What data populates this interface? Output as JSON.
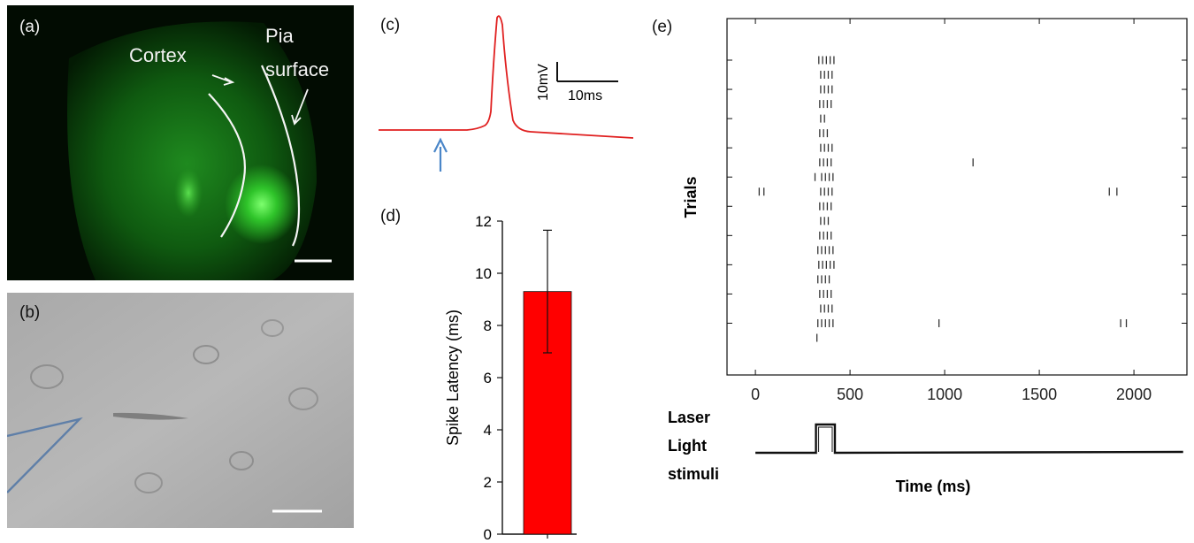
{
  "panel_a": {
    "label": "(a)",
    "annotations": {
      "cortex": "Cortex",
      "pia_line1": "Pia",
      "pia_line2": "surface"
    }
  },
  "panel_b": {
    "label": "(b)"
  },
  "panel_c": {
    "label": "(c)",
    "scale_voltage": "10mV",
    "scale_time": "10ms"
  },
  "panel_d": {
    "label": "(d)"
  },
  "panel_e": {
    "label": "(e)"
  },
  "chart_data": [
    {
      "type": "bar",
      "panel": "d",
      "categories": [
        ""
      ],
      "values": [
        9.3
      ],
      "error": [
        2.35
      ],
      "ylabel": "Spike Latency (ms)",
      "ylim": [
        0,
        12
      ],
      "yticks": [
        0,
        2,
        4,
        6,
        8,
        10,
        12
      ],
      "bar_color": "#ff0000"
    },
    {
      "type": "scatter",
      "panel": "e",
      "subtype": "raster",
      "xlabel": "Time (ms)",
      "ylabel": "Trials",
      "xlim": [
        -150,
        2280
      ],
      "xticks": [
        0,
        500,
        1000,
        1500,
        2000
      ],
      "n_trials": 20,
      "spikes": [
        [
          335,
          355,
          375,
          395,
          415
        ],
        [
          345,
          365,
          385,
          405
        ],
        [
          345,
          365,
          385,
          405
        ],
        [
          340,
          360,
          380,
          400
        ],
        [
          345,
          365
        ],
        [
          340,
          360,
          380
        ],
        [
          345,
          365,
          385,
          405
        ],
        [
          340,
          360,
          380,
          400,
          1150
        ],
        [
          315,
          350,
          370,
          390,
          410
        ],
        [
          20,
          45,
          345,
          365,
          385,
          405,
          1870,
          1910
        ],
        [
          340,
          360,
          380,
          400
        ],
        [
          345,
          365,
          385
        ],
        [
          340,
          360,
          380,
          400
        ],
        [
          330,
          350,
          370,
          390,
          410
        ],
        [
          335,
          355,
          375,
          395,
          415
        ],
        [
          330,
          350,
          370,
          390
        ],
        [
          340,
          360,
          380,
          400
        ],
        [
          345,
          365,
          385,
          405
        ],
        [
          330,
          350,
          370,
          390,
          410,
          970,
          1930,
          1960
        ],
        [
          325
        ]
      ],
      "stimulus_label": [
        "Laser",
        "Light",
        "stimuli"
      ],
      "stimulus_on": [
        320,
        420
      ]
    }
  ]
}
